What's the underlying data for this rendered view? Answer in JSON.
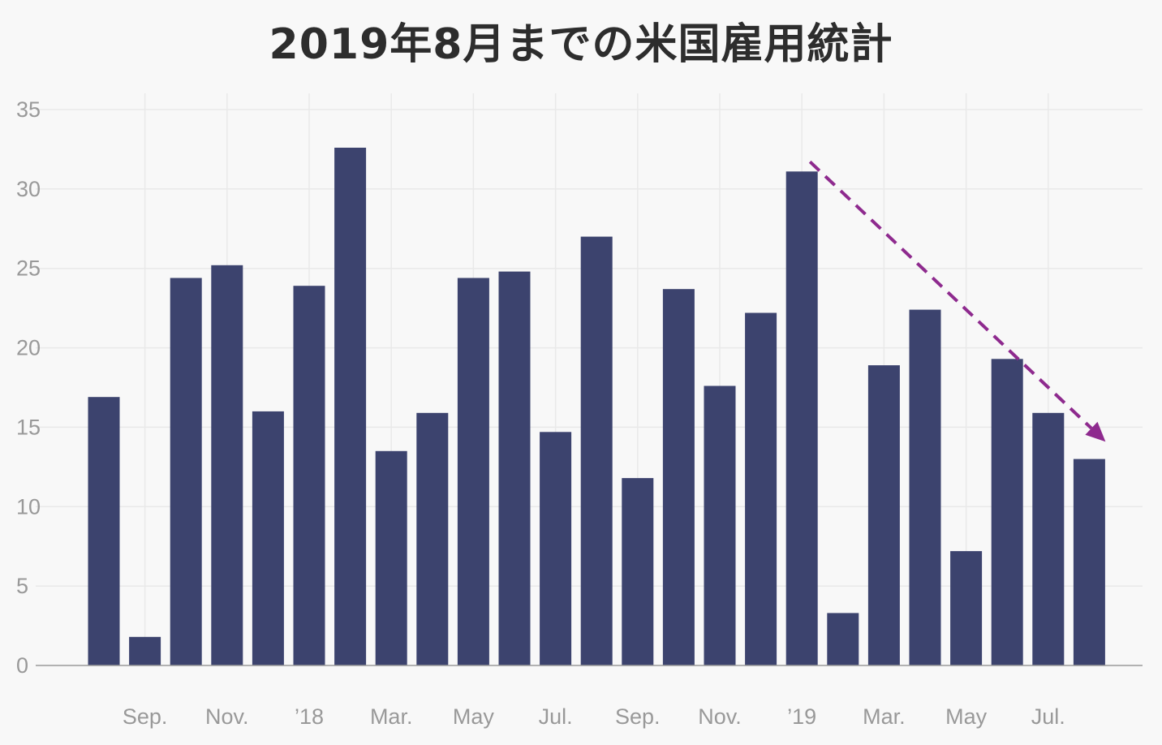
{
  "title": "2019年8月までの米国雇用統計",
  "colors": {
    "background": "#f8f8f8",
    "bar": "#3c436e",
    "trend_arrow": "#8e2a8e",
    "grid": "#e9e9e9",
    "tick_text": "#999999",
    "title_text": "#2d2d2d"
  },
  "chart_data": {
    "type": "bar",
    "title": "2019年8月までの米国雇用統計",
    "xlabel": "",
    "ylabel": "",
    "ylim": [
      0,
      35
    ],
    "yticks": [
      0,
      5,
      10,
      15,
      20,
      25,
      30,
      35
    ],
    "grid": true,
    "legend": "none",
    "categories": [
      "2017-08",
      "2017-09",
      "2017-10",
      "2017-11",
      "2017-12",
      "2018-01",
      "2018-02",
      "2018-03",
      "2018-04",
      "2018-05",
      "2018-06",
      "2018-07",
      "2018-08",
      "2018-09",
      "2018-10",
      "2018-11",
      "2018-12",
      "2019-01",
      "2019-02",
      "2019-03",
      "2019-04",
      "2019-05",
      "2019-06",
      "2019-07",
      "2019-08"
    ],
    "values": [
      16.9,
      1.8,
      24.4,
      25.2,
      16.0,
      23.9,
      32.6,
      13.5,
      15.9,
      24.4,
      24.8,
      14.7,
      27.0,
      11.8,
      23.7,
      17.6,
      22.2,
      31.1,
      3.3,
      18.9,
      22.4,
      7.2,
      19.3,
      15.9,
      13.0
    ],
    "xtick_labels": [
      {
        "label": "Sep.",
        "at": "2017-09"
      },
      {
        "label": "Nov.",
        "at": "2017-11"
      },
      {
        "label": "’18",
        "at": "2018-01"
      },
      {
        "label": "Mar.",
        "at": "2018-03"
      },
      {
        "label": "May",
        "at": "2018-05"
      },
      {
        "label": "Jul.",
        "at": "2018-07"
      },
      {
        "label": "Sep.",
        "at": "2018-09"
      },
      {
        "label": "Nov.",
        "at": "2018-11"
      },
      {
        "label": "’19",
        "at": "2019-01"
      },
      {
        "label": "Mar.",
        "at": "2019-03"
      },
      {
        "label": "May",
        "at": "2019-05"
      },
      {
        "label": "Jul.",
        "at": "2019-07"
      }
    ],
    "annotations": [
      {
        "type": "dashed-arrow",
        "from": {
          "x": "2019-01",
          "y": 31.1
        },
        "to": {
          "x": "2019-08",
          "y": 14.5
        },
        "meaning": "downward trend"
      }
    ]
  }
}
